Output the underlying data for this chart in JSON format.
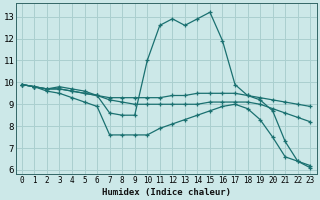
{
  "xlabel": "Humidex (Indice chaleur)",
  "bg_color": "#cce8e8",
  "grid_color": "#aacfcf",
  "line_color": "#1a7070",
  "xlim": [
    -0.5,
    23.5
  ],
  "ylim": [
    5.8,
    13.6
  ],
  "yticks": [
    6,
    7,
    8,
    9,
    10,
    11,
    12,
    13
  ],
  "xticks": [
    0,
    1,
    2,
    3,
    4,
    5,
    6,
    7,
    8,
    9,
    10,
    11,
    12,
    13,
    14,
    15,
    16,
    17,
    18,
    19,
    20,
    21,
    22,
    23
  ],
  "lines": [
    {
      "x": [
        0,
        1,
        2,
        3,
        4,
        5,
        6,
        7,
        8,
        9,
        10,
        11,
        12,
        13,
        14,
        15,
        16,
        17,
        18,
        19,
        20,
        21,
        22,
        23
      ],
      "y": [
        9.9,
        9.8,
        9.7,
        9.8,
        9.7,
        9.6,
        9.4,
        8.6,
        8.5,
        8.5,
        11.0,
        12.6,
        12.9,
        12.6,
        12.9,
        13.2,
        11.9,
        9.9,
        9.4,
        9.2,
        8.7,
        7.3,
        6.4,
        6.2
      ]
    },
    {
      "x": [
        0,
        1,
        2,
        3,
        4,
        5,
        6,
        7,
        8,
        9,
        10,
        11,
        12,
        13,
        14,
        15,
        16,
        17,
        18,
        19,
        20,
        21,
        22,
        23
      ],
      "y": [
        9.9,
        9.8,
        9.7,
        9.7,
        9.6,
        9.5,
        9.4,
        9.3,
        9.3,
        9.3,
        9.3,
        9.3,
        9.4,
        9.4,
        9.5,
        9.5,
        9.5,
        9.5,
        9.4,
        9.3,
        9.2,
        9.1,
        9.0,
        8.9
      ]
    },
    {
      "x": [
        0,
        1,
        2,
        3,
        4,
        5,
        6,
        7,
        8,
        9,
        10,
        11,
        12,
        13,
        14,
        15,
        16,
        17,
        18,
        19,
        20,
        21,
        22,
        23
      ],
      "y": [
        9.9,
        9.8,
        9.7,
        9.7,
        9.6,
        9.5,
        9.4,
        9.2,
        9.1,
        9.0,
        9.0,
        9.0,
        9.0,
        9.0,
        9.0,
        9.1,
        9.1,
        9.1,
        9.1,
        9.0,
        8.8,
        8.6,
        8.4,
        8.2
      ]
    },
    {
      "x": [
        0,
        1,
        2,
        3,
        4,
        5,
        6,
        7,
        8,
        9,
        10,
        11,
        12,
        13,
        14,
        15,
        16,
        17,
        18,
        19,
        20,
        21,
        22,
        23
      ],
      "y": [
        9.9,
        9.8,
        9.6,
        9.5,
        9.3,
        9.1,
        8.9,
        7.6,
        7.6,
        7.6,
        7.6,
        7.9,
        8.1,
        8.3,
        8.5,
        8.7,
        8.9,
        9.0,
        8.8,
        8.3,
        7.5,
        6.6,
        6.4,
        6.1
      ]
    }
  ]
}
